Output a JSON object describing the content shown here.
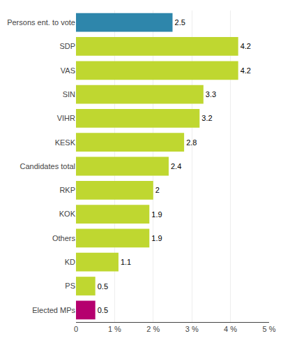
{
  "chart_data": {
    "type": "bar",
    "orientation": "horizontal",
    "categories": [
      "Persons ent. to vote",
      "SDP",
      "VAS",
      "SIN",
      "VIHR",
      "KESK",
      "Candidates total",
      "RKP",
      "KOK",
      "Others",
      "KD",
      "PS",
      "Elected MPs"
    ],
    "values": [
      2.5,
      4.2,
      4.2,
      3.3,
      3.2,
      2.8,
      2.4,
      2.0,
      1.9,
      1.9,
      1.1,
      0.5,
      0.5
    ],
    "colors": [
      "#2e86ab",
      "#bfd730",
      "#bfd730",
      "#bfd730",
      "#bfd730",
      "#bfd730",
      "#bfd730",
      "#bfd730",
      "#bfd730",
      "#bfd730",
      "#bfd730",
      "#bfd730",
      "#b5006e"
    ],
    "xlim": [
      0,
      5
    ],
    "xticks": [
      0,
      {
        "value": 1,
        "label": "1 %"
      },
      {
        "value": 2,
        "label": "2 %"
      },
      {
        "value": 3,
        "label": "3 %"
      },
      {
        "value": 4,
        "label": "4 %"
      },
      {
        "value": 5,
        "label": "5 %"
      }
    ],
    "grid": true,
    "data_labels": true
  }
}
